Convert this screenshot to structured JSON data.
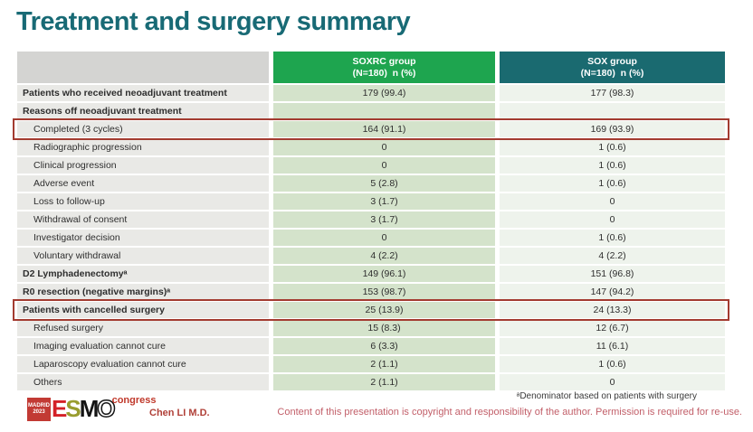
{
  "slide": {
    "title": "Treatment and surgery summary",
    "footnote": "ᵃDenominator based on patients with surgery",
    "copyright": "Content of this presentation is copyright and responsibility of the author. Permission is required for re-use.",
    "presenter": "Chen LI M.D."
  },
  "logo": {
    "city": "MADRID",
    "year": "2023",
    "e": "E",
    "s": "S",
    "m": "M",
    "o": "O",
    "congress": "congress"
  },
  "colors": {
    "title": "#186a75",
    "header_soxrc": "#1ea54f",
    "header_sox": "#1a6a70",
    "col_label_bg": "#e9e9e6",
    "col_soxrc_bg": "#d4e3cb",
    "col_sox_bg": "#eef3ec",
    "highlight_border": "#a33b30",
    "copyright_text": "#c25f69"
  },
  "table": {
    "columns": [
      {
        "line1": "",
        "line2": ""
      },
      {
        "line1": "SOXRC group",
        "line2": "(N=180)  n (%)"
      },
      {
        "line1": "SOX group",
        "line2": "(N=180)  n (%)"
      }
    ],
    "rows": [
      {
        "label": "Patients who received neoadjuvant treatment",
        "bold": true,
        "indent": false,
        "highlight": false,
        "soxrc": "179 (99.4)",
        "sox": "177 (98.3)"
      },
      {
        "label": "Reasons off neoadjuvant treatment",
        "bold": true,
        "indent": false,
        "highlight": false,
        "soxrc": "",
        "sox": ""
      },
      {
        "label": "Completed (3 cycles)",
        "bold": false,
        "indent": true,
        "highlight": true,
        "soxrc": "164 (91.1)",
        "sox": "169 (93.9)"
      },
      {
        "label": "Radiographic progression",
        "bold": false,
        "indent": true,
        "highlight": false,
        "soxrc": "0",
        "sox": "1 (0.6)"
      },
      {
        "label": "Clinical progression",
        "bold": false,
        "indent": true,
        "highlight": false,
        "soxrc": "0",
        "sox": "1 (0.6)"
      },
      {
        "label": "Adverse event",
        "bold": false,
        "indent": true,
        "highlight": false,
        "soxrc": "5 (2.8)",
        "sox": "1 (0.6)"
      },
      {
        "label": "Loss to follow-up",
        "bold": false,
        "indent": true,
        "highlight": false,
        "soxrc": "3 (1.7)",
        "sox": "0"
      },
      {
        "label": "Withdrawal of consent",
        "bold": false,
        "indent": true,
        "highlight": false,
        "soxrc": "3 (1.7)",
        "sox": "0"
      },
      {
        "label": "Investigator decision",
        "bold": false,
        "indent": true,
        "highlight": false,
        "soxrc": "0",
        "sox": "1 (0.6)"
      },
      {
        "label": "Voluntary withdrawal",
        "bold": false,
        "indent": true,
        "highlight": false,
        "soxrc": "4 (2.2)",
        "sox": "4 (2.2)"
      },
      {
        "label": "D2 Lymphadenectomyᵃ",
        "bold": true,
        "indent": false,
        "highlight": false,
        "soxrc": "149 (96.1)",
        "sox": "151 (96.8)"
      },
      {
        "label": "R0 resection (negative margins)ᵃ",
        "bold": true,
        "indent": false,
        "highlight": false,
        "soxrc": "153 (98.7)",
        "sox": "147 (94.2)"
      },
      {
        "label": "Patients with cancelled surgery",
        "bold": true,
        "indent": false,
        "highlight": true,
        "soxrc": "25 (13.9)",
        "sox": "24 (13.3)"
      },
      {
        "label": "Refused surgery",
        "bold": false,
        "indent": true,
        "highlight": false,
        "soxrc": "15 (8.3)",
        "sox": "12 (6.7)"
      },
      {
        "label": "Imaging evaluation cannot cure",
        "bold": false,
        "indent": true,
        "highlight": false,
        "soxrc": "6 (3.3)",
        "sox": "11 (6.1)"
      },
      {
        "label": "Laparoscopy evaluation cannot cure",
        "bold": false,
        "indent": true,
        "highlight": false,
        "soxrc": "2 (1.1)",
        "sox": "1 (0.6)"
      },
      {
        "label": "Others",
        "bold": false,
        "indent": true,
        "highlight": false,
        "soxrc": "2 (1.1)",
        "sox": "0"
      }
    ]
  }
}
